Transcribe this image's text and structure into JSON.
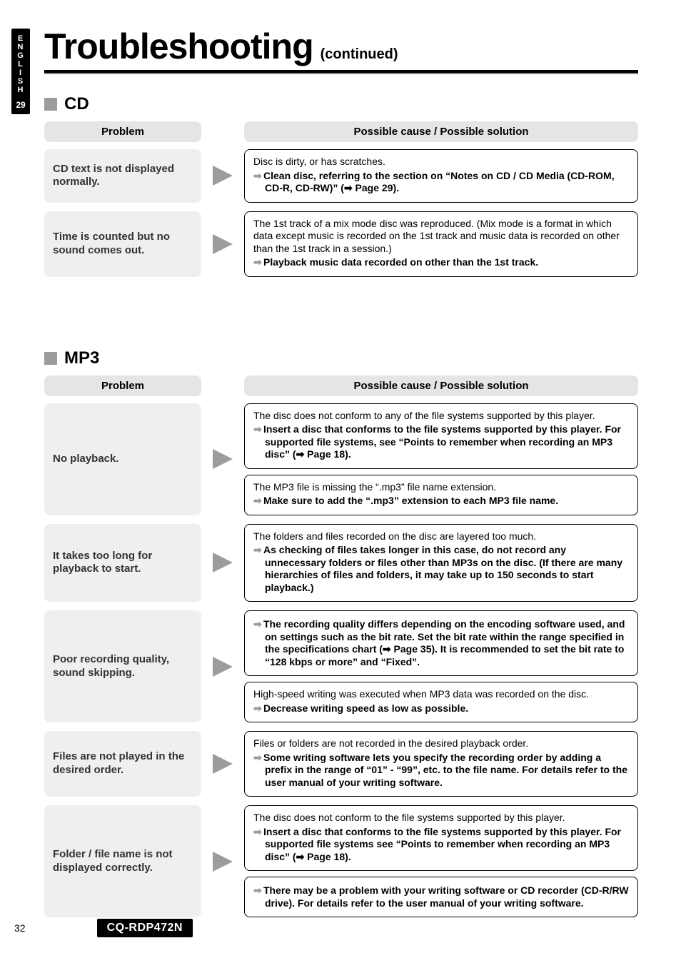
{
  "language_tab": "ENGLISH",
  "language_tab_page": "29",
  "title": "Troubleshooting",
  "title_suffix": "(continued)",
  "header_problem": "Problem",
  "header_solution": "Possible cause / Possible solution",
  "page_number": "32",
  "model": "CQ-RDP472N",
  "colors": {
    "accent_gray": "#9c9c9c",
    "panel_gray": "#efefef",
    "header_gray": "#e5e5e5"
  },
  "sections": [
    {
      "title": "CD",
      "rows": [
        {
          "problem": "CD text is not displayed normally.",
          "solutions": [
            {
              "plain": "Disc is dirty, or has scratches.",
              "action": "Clean disc, referring to the section on “Notes on CD / CD Media (CD-ROM, CD-R, CD-RW)” (➡ Page 29)."
            }
          ]
        },
        {
          "problem": "Time is counted but no sound comes out.",
          "solutions": [
            {
              "plain": "The 1st track of a mix mode disc was reproduced. (Mix mode is a format in which data except music is recorded on the 1st track and music data is recorded on other than the 1st track in a session.)",
              "action": "Playback music data recorded on other than the 1st track."
            }
          ]
        }
      ]
    },
    {
      "title": "MP3",
      "rows": [
        {
          "problem": "No playback.",
          "solutions": [
            {
              "plain": "The disc does not conform to any of the file systems supported by this player.",
              "action": "Insert a disc that conforms to the file systems supported by this player. For supported file systems, see “Points to remember when recording an MP3 disc” (➡ Page 18)."
            },
            {
              "plain": "The MP3 file is missing the “.mp3” file name extension.",
              "action": "Make sure to add the “.mp3” extension to each MP3 file name."
            }
          ]
        },
        {
          "problem": "It takes too long for playback to start.",
          "solutions": [
            {
              "plain": "The folders and files recorded on the disc are layered too much.",
              "action": "As checking of files takes longer in this case, do not record any unnecessary folders or files other than MP3s on the disc. (If there are many hierarchies of files and folders, it may take up to 150 seconds to start playback.)"
            }
          ]
        },
        {
          "problem": "Poor recording quality, sound skipping.",
          "solutions": [
            {
              "plain": "",
              "action": "The recording quality differs depending on the encoding software used, and on settings such as the bit rate.  Set the bit rate within the range specified in the specifications chart (➡ Page 35). It is recommended to set the bit rate to “128 kbps or more” and “Fixed”."
            },
            {
              "plain": "High-speed writing was executed when MP3 data was recorded on the disc.",
              "action": "Decrease writing speed as low as possible."
            }
          ]
        },
        {
          "problem": "Files are not played in the desired order.",
          "solutions": [
            {
              "plain": "Files or folders are not recorded in the desired playback order.",
              "action": "Some writing software lets you specify the recording order by adding a prefix in the range of “01” - “99”, etc. to the file name.  For details refer to the user manual of your writing software."
            }
          ]
        },
        {
          "problem": "Folder / file name is not displayed correctly.",
          "solutions": [
            {
              "plain": "The disc does not conform to the file systems supported by this player.",
              "action": "Insert a disc that conforms to the file systems supported by this player. For supported file systems see “Points to remember when recording an MP3 disc” (➡ Page 18)."
            },
            {
              "plain": "",
              "action": "There may be a problem with your writing software or CD recorder (CD-R/RW drive).  For details refer to the user manual of your writing software."
            }
          ]
        }
      ]
    }
  ]
}
